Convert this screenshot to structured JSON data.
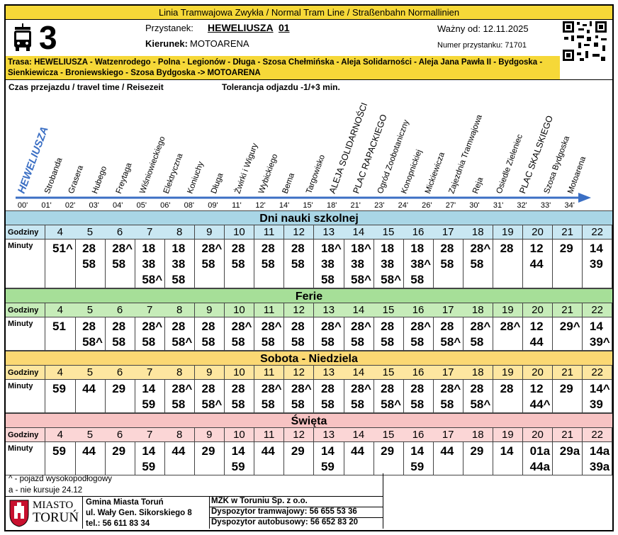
{
  "header": {
    "line_type": "Linia Tramwajowa Zwykła  / Normal Tram Line / Straßenbahn  Normallinien",
    "line_number": "3",
    "stop_label": "Przystanek:",
    "stop_name": "HEWELIUSZA",
    "stop_code": "01",
    "direction_label": "Kierunek:",
    "direction": "MOTOARENA",
    "valid_from": "Ważny od: 12.11.2025",
    "stop_number": "Numer przystanku: 71701",
    "route": "Trasa: HEWELIUSZA - Watzenrodego - Polna - Legionów - Długa - Szosa Chełmińska - Aleja Solidarności - Aleja Jana Pawła II - Bydgoska - Sienkiewicza - Broniewskiego - Szosa Bydgoska -> MOTOARENA"
  },
  "travel": {
    "title": "Czas przejazdu / travel time / Reisezeit",
    "tolerance": "Tolerancja odjazdu -1/+3 min.",
    "stops": [
      {
        "name": "HEWELIUSZA",
        "time": "00'"
      },
      {
        "name": "Strobanda",
        "time": "01'"
      },
      {
        "name": "Grasera",
        "time": "02'"
      },
      {
        "name": "Hubego",
        "time": "03'"
      },
      {
        "name": "Freytaga",
        "time": "04'"
      },
      {
        "name": "Wiśniowieckiego",
        "time": "05'"
      },
      {
        "name": "Elektryczna",
        "time": "06'"
      },
      {
        "name": "Koniuchy",
        "time": "08'"
      },
      {
        "name": "Długa",
        "time": "09'"
      },
      {
        "name": "Żwirki i Wigury",
        "time": "11'"
      },
      {
        "name": "Wybickiego",
        "time": "12'"
      },
      {
        "name": "Bema",
        "time": "14'"
      },
      {
        "name": "Targowisko",
        "time": "15'"
      },
      {
        "name": "ALEJA SOLIDARNOŚCI",
        "time": "18'"
      },
      {
        "name": "PLAC RAPACKIEGO",
        "time": "21'"
      },
      {
        "name": "Ogród Zoobotaniczny",
        "time": "23'"
      },
      {
        "name": "Konopnickiej",
        "time": "24'"
      },
      {
        "name": "Mickiewicza",
        "time": "26'"
      },
      {
        "name": "Zajezdnia Tramwajowa",
        "time": "27'"
      },
      {
        "name": "Reja",
        "time": "30'"
      },
      {
        "name": "Osiedle Zieleniec",
        "time": "31'"
      },
      {
        "name": "PLAC SKALSKIEGO",
        "time": "32'"
      },
      {
        "name": "Szosa Bydgoska",
        "time": "33'"
      },
      {
        "name": "Motoarena",
        "time": "34'"
      }
    ]
  },
  "schedules": [
    {
      "title": "Dni nauki szkolnej",
      "hours_label": "Godziny",
      "minutes_label": "Minuty",
      "hours": [
        4,
        5,
        6,
        7,
        8,
        9,
        10,
        11,
        12,
        13,
        14,
        15,
        16,
        17,
        18,
        19,
        20,
        21,
        22
      ],
      "minutes": [
        [
          "51^"
        ],
        [
          "28",
          "58"
        ],
        [
          "28^",
          "58"
        ],
        [
          "18",
          "38",
          "58^"
        ],
        [
          "18",
          "38",
          "58"
        ],
        [
          "28^",
          "58"
        ],
        [
          "28",
          "58"
        ],
        [
          "28",
          "58"
        ],
        [
          "28",
          "58"
        ],
        [
          "18^",
          "38",
          "58"
        ],
        [
          "18^",
          "38",
          "58^"
        ],
        [
          "18",
          "38",
          "58^"
        ],
        [
          "18",
          "38^",
          "58"
        ],
        [
          "28",
          "58"
        ],
        [
          "28^",
          "58"
        ],
        [
          "28"
        ],
        [
          "12",
          "44"
        ],
        [
          "29"
        ],
        [
          "14",
          "39"
        ]
      ]
    },
    {
      "title": "Ferie",
      "hours_label": "Godziny",
      "minutes_label": "Minuty",
      "hours": [
        4,
        5,
        6,
        7,
        8,
        9,
        10,
        11,
        12,
        13,
        14,
        15,
        16,
        17,
        18,
        19,
        20,
        21,
        22
      ],
      "minutes": [
        [
          "51"
        ],
        [
          "28",
          "58^"
        ],
        [
          "28",
          "58"
        ],
        [
          "28^",
          "58"
        ],
        [
          "28",
          "58^"
        ],
        [
          "28",
          "58"
        ],
        [
          "28^",
          "58"
        ],
        [
          "28^",
          "58"
        ],
        [
          "28",
          "58"
        ],
        [
          "28^",
          "58"
        ],
        [
          "28^",
          "58"
        ],
        [
          "28",
          "58"
        ],
        [
          "28^",
          "58"
        ],
        [
          "28",
          "58^"
        ],
        [
          "28^",
          "58"
        ],
        [
          "28^"
        ],
        [
          "12",
          "44"
        ],
        [
          "29^"
        ],
        [
          "14",
          "39^"
        ]
      ]
    },
    {
      "title": "Sobota - Niedziela",
      "hours_label": "Godziny",
      "minutes_label": "Minuty",
      "hours": [
        4,
        5,
        6,
        7,
        8,
        9,
        10,
        11,
        12,
        13,
        14,
        15,
        16,
        17,
        18,
        19,
        20,
        21,
        22
      ],
      "minutes": [
        [
          "59"
        ],
        [
          "44"
        ],
        [
          "29"
        ],
        [
          "14",
          "59"
        ],
        [
          "28^",
          "58"
        ],
        [
          "28",
          "58^"
        ],
        [
          "28",
          "58"
        ],
        [
          "28^",
          "58"
        ],
        [
          "28^",
          "58"
        ],
        [
          "28",
          "58"
        ],
        [
          "28^",
          "58"
        ],
        [
          "28",
          "58^"
        ],
        [
          "28",
          "58"
        ],
        [
          "28^",
          "58"
        ],
        [
          "28",
          "58^"
        ],
        [
          "28"
        ],
        [
          "12",
          "44^"
        ],
        [
          "29"
        ],
        [
          "14^",
          "39"
        ]
      ]
    },
    {
      "title": "Święta",
      "hours_label": "Godziny",
      "minutes_label": "Minuty",
      "hours": [
        4,
        5,
        6,
        7,
        8,
        9,
        10,
        11,
        12,
        13,
        14,
        15,
        16,
        17,
        18,
        19,
        20,
        21,
        22
      ],
      "minutes": [
        [
          "59"
        ],
        [
          "44"
        ],
        [
          "29"
        ],
        [
          "14",
          "59"
        ],
        [
          "44"
        ],
        [
          "29"
        ],
        [
          "14",
          "59"
        ],
        [
          "44"
        ],
        [
          "29"
        ],
        [
          "14",
          "59"
        ],
        [
          "44"
        ],
        [
          "29"
        ],
        [
          "14",
          "59"
        ],
        [
          "44"
        ],
        [
          "29"
        ],
        [
          "14"
        ],
        [
          "01a",
          "44a"
        ],
        [
          "29a"
        ],
        [
          "14a",
          "39a"
        ]
      ]
    }
  ],
  "footer": {
    "legend": [
      "^ - pojazd wysokopodłogowy",
      "a - nie kursuje 24.12"
    ],
    "city_logo": [
      "MIASTO",
      "TORUŃ"
    ],
    "gmina": [
      "Gmina Miasta Toruń",
      "ul. Wały Gen. Sikorskiego 8",
      "tel.: 56 611 83 34"
    ],
    "operator": [
      "MZK w Toruniu Sp. z o.o.",
      "Dyspozytor tramwajowy: 56 655 53 36",
      "Dyspozytor autobusowy: 56 652 83 20"
    ]
  }
}
